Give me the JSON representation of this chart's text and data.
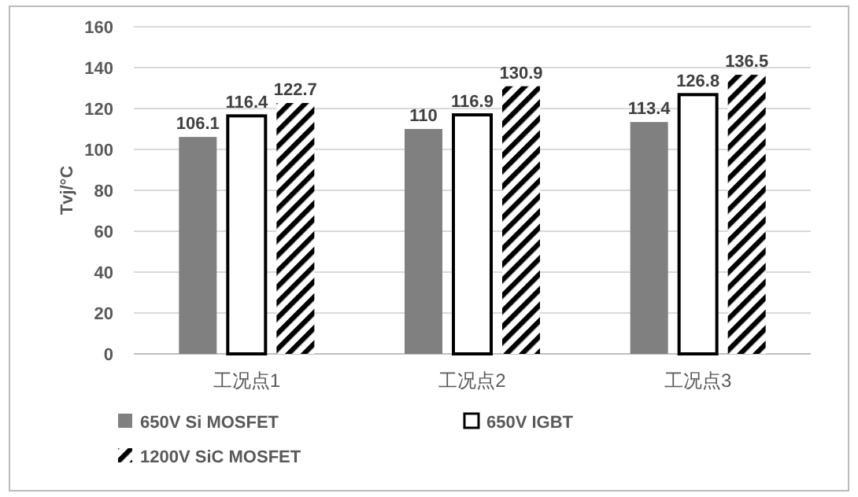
{
  "chart_data": {
    "type": "bar",
    "ylabel": "Tvj/°C",
    "categories": [
      "工况点1",
      "工况点2",
      "工况点3"
    ],
    "series": [
      {
        "name": "650V Si MOSFET",
        "color": "#808080",
        "values": [
          106.1,
          110,
          113.4
        ]
      },
      {
        "name": "650V IGBT",
        "color": "#ffffff",
        "values": [
          116.4,
          116.9,
          126.8
        ]
      },
      {
        "name": "1200V SiC MOSFET",
        "color": "#000000",
        "values": [
          122.7,
          130.9,
          136.5
        ]
      }
    ],
    "ylim": [
      0,
      160
    ],
    "yticks": [
      0,
      20,
      40,
      60,
      80,
      100,
      120,
      140,
      160
    ],
    "grid": "y",
    "legend": "bottom",
    "data_labels": true
  }
}
